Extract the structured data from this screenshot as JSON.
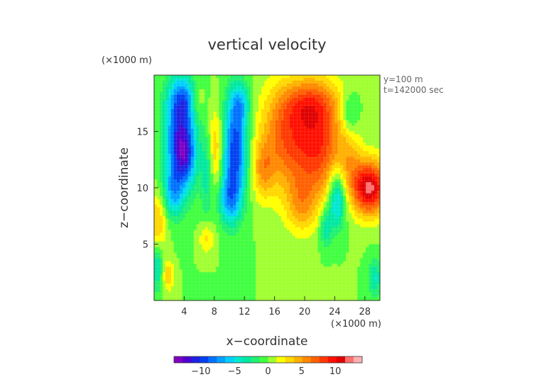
{
  "chart_data": {
    "type": "heatmap",
    "title": "vertical velocity",
    "xlabel": "x−coordinate",
    "ylabel": "z−coordinate",
    "x_unit": "(×1000 m)",
    "y_unit": "(×1000 m)",
    "annotations": [
      "y=100 m",
      "t=142000 sec"
    ],
    "xlim": [
      0,
      30
    ],
    "ylim": [
      0,
      20
    ],
    "x_ticks": [
      4,
      8,
      12,
      16,
      20,
      24,
      28
    ],
    "y_ticks": [
      5,
      10,
      15
    ],
    "colorbar": {
      "range": [
        -14,
        14
      ],
      "ticks": [
        -10,
        -5,
        0,
        5,
        10
      ],
      "tick_labels": [
        "−10",
        "−5",
        "0",
        "5",
        "10"
      ],
      "colors": [
        "#8000c0",
        "#5000d0",
        "#2020e0",
        "#0040f0",
        "#0070ff",
        "#00a0ff",
        "#00d0ff",
        "#00e8d0",
        "#00e8a0",
        "#20f070",
        "#40ff40",
        "#a0ff30",
        "#ffff00",
        "#ffd800",
        "#ffb000",
        "#ff8800",
        "#ff6000",
        "#ff3800",
        "#ff1000",
        "#e00000",
        "#ff7070",
        "#ffb0b0"
      ]
    },
    "blobs": [
      {
        "x": 3.5,
        "z": 14.5,
        "sx": 1.4,
        "sz": 3.2,
        "v": -11
      },
      {
        "x": 4.2,
        "z": 12.5,
        "sx": 0.9,
        "sz": 1.6,
        "v": -4
      },
      {
        "x": 2.5,
        "z": 9.5,
        "sx": 0.9,
        "sz": 1.5,
        "v": -5
      },
      {
        "x": 4.0,
        "z": 18.0,
        "sx": 1.4,
        "sz": 1.2,
        "v": -4
      },
      {
        "x": 10.8,
        "z": 13.5,
        "sx": 1.1,
        "sz": 3.2,
        "v": -10
      },
      {
        "x": 10.0,
        "z": 9.0,
        "sx": 1.0,
        "sz": 1.6,
        "v": -6
      },
      {
        "x": 11.5,
        "z": 17.5,
        "sx": 0.9,
        "sz": 1.2,
        "v": -4
      },
      {
        "x": 7.0,
        "z": 11.0,
        "sx": 0.6,
        "sz": 2.5,
        "v": -3
      },
      {
        "x": 24.3,
        "z": 9.0,
        "sx": 0.8,
        "sz": 1.8,
        "v": -7
      },
      {
        "x": 22.8,
        "z": 6.5,
        "sx": 0.6,
        "sz": 1.2,
        "v": -4
      },
      {
        "x": 0.4,
        "z": 3.0,
        "sx": 0.5,
        "sz": 1.5,
        "v": -4
      },
      {
        "x": 29.3,
        "z": 2.0,
        "sx": 0.6,
        "sz": 1.2,
        "v": -4
      },
      {
        "x": 26.0,
        "z": 16.5,
        "sx": 0.8,
        "sz": 1.2,
        "v": -3
      },
      {
        "x": 8.2,
        "z": 13.5,
        "sx": 0.6,
        "sz": 2.5,
        "v": 4
      },
      {
        "x": 5.7,
        "z": 17.8,
        "sx": 0.7,
        "sz": 1.2,
        "v": 3
      },
      {
        "x": 0.4,
        "z": 7.0,
        "sx": 0.9,
        "sz": 1.8,
        "v": 4
      },
      {
        "x": 1.9,
        "z": 2.2,
        "sx": 0.5,
        "sz": 0.9,
        "v": 4
      },
      {
        "x": 7.0,
        "z": 5.5,
        "sx": 0.7,
        "sz": 0.9,
        "v": 3
      },
      {
        "x": 17.5,
        "z": 14.5,
        "sx": 2.4,
        "sz": 3.2,
        "v": 7
      },
      {
        "x": 22.0,
        "z": 14.0,
        "sx": 2.2,
        "sz": 3.5,
        "v": 8
      },
      {
        "x": 14.5,
        "z": 11.5,
        "sx": 1.0,
        "sz": 1.8,
        "v": 4
      },
      {
        "x": 19.5,
        "z": 8.5,
        "sx": 1.5,
        "sz": 1.8,
        "v": 4
      },
      {
        "x": 28.6,
        "z": 10.0,
        "sx": 1.6,
        "sz": 1.7,
        "v": 12
      },
      {
        "x": 26.0,
        "z": 12.5,
        "sx": 1.1,
        "sz": 2.0,
        "v": 3
      },
      {
        "x": 20.5,
        "z": 17.5,
        "sx": 2.5,
        "sz": 1.4,
        "v": 4
      }
    ]
  }
}
